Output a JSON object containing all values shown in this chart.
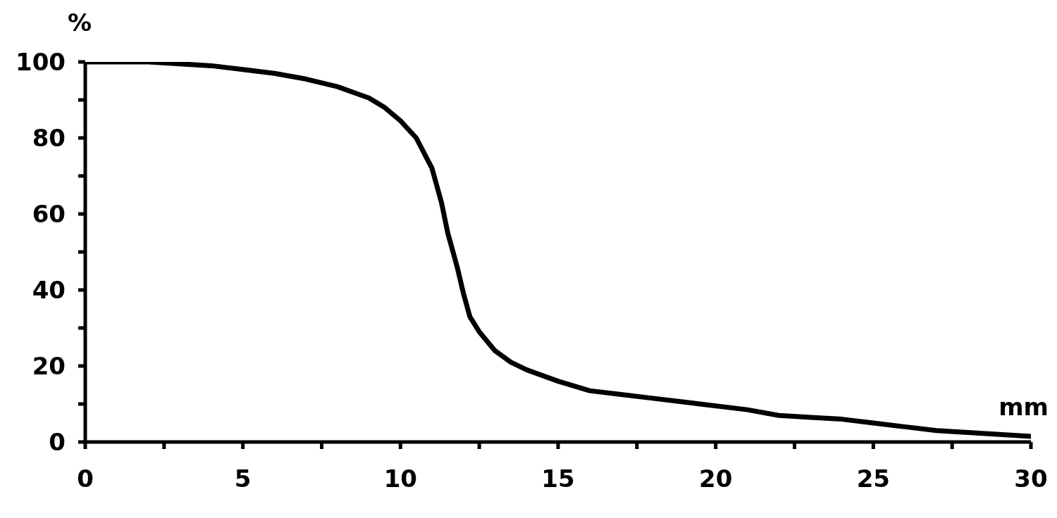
{
  "chart_data": {
    "type": "line",
    "xlabel": "mm",
    "ylabel": "%",
    "x": [
      0,
      2,
      3,
      4,
      5,
      6,
      7,
      8,
      9,
      9.5,
      10,
      10.5,
      11,
      11.3,
      11.5,
      11.8,
      12,
      12.2,
      12.5,
      13,
      13.5,
      14,
      15,
      16,
      17,
      18,
      19,
      20,
      21,
      22,
      23,
      24,
      25,
      26,
      27,
      28,
      29,
      30
    ],
    "series": [
      {
        "color": "#000000",
        "values": [
          100,
          100,
          99.5,
          99,
          98,
          97,
          95.5,
          93.5,
          90.5,
          88,
          84.5,
          80,
          72,
          63,
          55,
          46,
          39,
          33,
          29,
          24,
          21,
          19,
          16,
          13.5,
          12.5,
          11.5,
          10.5,
          9.5,
          8.5,
          7,
          6.5,
          6,
          5,
          4,
          3,
          2.5,
          2,
          1.5
        ]
      }
    ],
    "xlim": [
      0,
      30
    ],
    "ylim": [
      0,
      100
    ],
    "xticks": [
      0,
      {
        "value": 2.5,
        "label": null
      },
      5,
      {
        "value": 7.5,
        "label": null
      },
      10,
      {
        "value": 12.5,
        "label": null
      },
      15,
      {
        "value": 17.5,
        "label": null
      },
      20,
      {
        "value": 22.5,
        "label": null
      },
      25,
      {
        "value": 27.5,
        "label": null
      },
      30
    ],
    "yticks": [
      0,
      {
        "value": 10,
        "label": null
      },
      20,
      {
        "value": 30,
        "label": null
      },
      40,
      {
        "value": 50,
        "label": null
      },
      60,
      {
        "value": 70,
        "label": null
      },
      80,
      {
        "value": 90,
        "label": null
      },
      100
    ],
    "grid": false,
    "legend": false,
    "marker": "none",
    "line_style": "solid"
  }
}
